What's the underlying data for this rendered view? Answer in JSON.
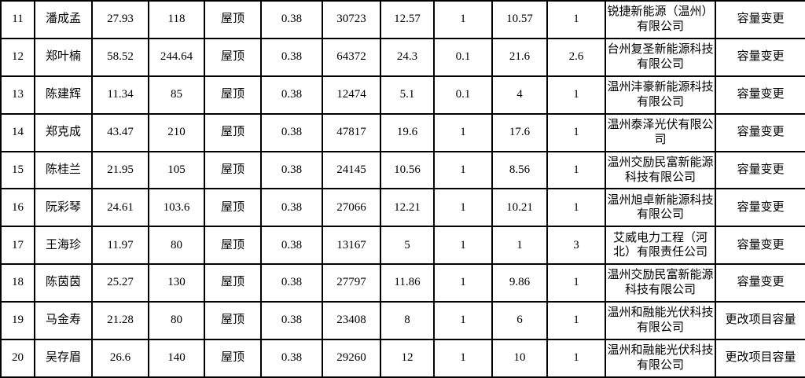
{
  "colors": {
    "grid_border": "#000000",
    "background": "#ffffff",
    "text": "#000000"
  },
  "table": {
    "column_semantics": [
      "row-number",
      "owner-name",
      "capacity-value",
      "panel-count",
      "install-type",
      "voltage-level",
      "energy-value",
      "power-value-1",
      "power-value-2",
      "power-value-3",
      "power-value-4",
      "company-name",
      "change-type"
    ],
    "rows": [
      {
        "cells": [
          "11",
          "潘成孟",
          "27.93",
          "118",
          "屋顶",
          "0.38",
          "30723",
          "12.57",
          "1",
          "10.57",
          "1",
          "锐捷新能源（温州）有限公司",
          "容量变更"
        ]
      },
      {
        "cells": [
          "12",
          "郑叶楠",
          "58.52",
          "244.64",
          "屋顶",
          "0.38",
          "64372",
          "24.3",
          "0.1",
          "21.6",
          "2.6",
          "台州复圣新能源科技有限公司",
          "容量变更"
        ]
      },
      {
        "cells": [
          "13",
          "陈建辉",
          "11.34",
          "85",
          "屋顶",
          "0.38",
          "12474",
          "5.1",
          "0.1",
          "4",
          "1",
          "温州沣豪新能源科技有限公司",
          "容量变更"
        ]
      },
      {
        "cells": [
          "14",
          "郑克成",
          "43.47",
          "210",
          "屋顶",
          "0.38",
          "47817",
          "19.6",
          "1",
          "17.6",
          "1",
          "温州泰泽光伏有限公司",
          "容量变更"
        ]
      },
      {
        "cells": [
          "15",
          "陈桂兰",
          "21.95",
          "105",
          "屋顶",
          "0.38",
          "24145",
          "10.56",
          "1",
          "8.56",
          "1",
          "温州交励民富新能源科技有限公司",
          "容量变更"
        ]
      },
      {
        "cells": [
          "16",
          "阮彩琴",
          "24.61",
          "103.6",
          "屋顶",
          "0.38",
          "27066",
          "12.21",
          "1",
          "10.21",
          "1",
          "温州旭卓新能源科技有限公司",
          "容量变更"
        ]
      },
      {
        "cells": [
          "17",
          "王海珍",
          "11.97",
          "80",
          "屋顶",
          "0.38",
          "13167",
          "5",
          "1",
          "1",
          "3",
          "艾威电力工程（河北）有限责任公司",
          "容量变更"
        ]
      },
      {
        "cells": [
          "18",
          "陈茵茵",
          "25.27",
          "130",
          "屋顶",
          "0.38",
          "27797",
          "11.86",
          "1",
          "9.86",
          "1",
          "温州交励民富新能源科技有限公司",
          "容量变更"
        ]
      },
      {
        "cells": [
          "19",
          "马金寿",
          "21.28",
          "80",
          "屋顶",
          "0.38",
          "23408",
          "8",
          "1",
          "6",
          "1",
          "温州和融能光伏科技有限公司",
          "更改项目容量"
        ]
      },
      {
        "cells": [
          "20",
          "吴存眉",
          "26.6",
          "140",
          "屋顶",
          "0.38",
          "29260",
          "12",
          "1",
          "10",
          "1",
          "温州和融能光伏科技有限公司",
          "更改项目容量"
        ]
      }
    ]
  }
}
